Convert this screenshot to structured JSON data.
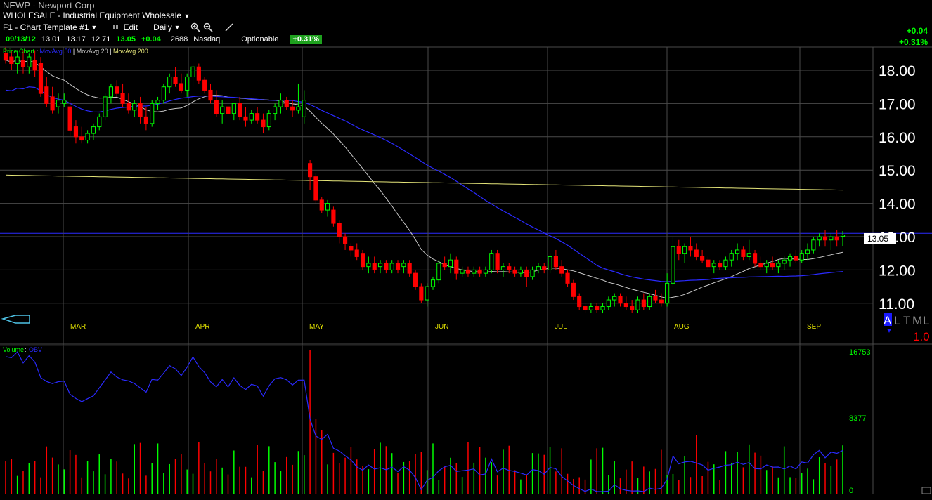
{
  "header": {
    "symbol_line": "NEWP - Newport Corp",
    "industry": "WHOLESALE - Industrial Equipment Wholesale",
    "template": "F1 - Chart Template #1",
    "edit_label": "Edit",
    "period_label": "Daily"
  },
  "quote": {
    "date": "09/13/12",
    "open": "13.01",
    "high": "13.17",
    "low": "12.71",
    "close": "13.05",
    "change": "+0.04",
    "volume": "2688",
    "exchange": "Nasdaq",
    "optionable": "Optionable",
    "pct_change": "+0.31%"
  },
  "right_panel": {
    "change": "+0.04",
    "pct_change": "+0.31%"
  },
  "legend": {
    "price_label": "Price Chart",
    "ma50": "MovAvg 50",
    "ma20": "MovAvg 20",
    "ma200": "MovAvg 200"
  },
  "volume_panel": {
    "label": "Volume",
    "obv_label": "OBV",
    "ticks": [
      "16753",
      "8377",
      "0"
    ]
  },
  "price_tag": "13.05",
  "corner_labels": {
    "a": "A",
    "l": "L",
    "t": "T",
    "m": "M",
    "l2": "L",
    "scale": "1.0"
  },
  "colors": {
    "up": "#00ff00",
    "down": "#ff0000",
    "ma20": "#c8c8c8",
    "ma50": "#2a2aff",
    "ma200": "#e6e67a",
    "grid": "#4a4a4a",
    "month": "#e6e600",
    "obv": "#2a2aff"
  },
  "chart_data": {
    "type": "candlestick",
    "y_axis": {
      "ticks": [
        "18.00",
        "17.00",
        "16.00",
        "15.00",
        "14.00",
        "13.00",
        "12.00",
        "11.00"
      ],
      "range": [
        10.6,
        18.6
      ]
    },
    "months": [
      "MAR",
      "APR",
      "MAY",
      "JUN",
      "JUL",
      "AUG",
      "SEP"
    ],
    "horizontal_line": 13.1,
    "candles": [
      [
        18.5,
        18.7,
        18.2,
        18.3
      ],
      [
        18.4,
        18.6,
        18.0,
        18.2
      ],
      [
        18.2,
        18.6,
        17.9,
        18.4
      ],
      [
        18.3,
        18.6,
        17.9,
        18.1
      ],
      [
        18.1,
        18.5,
        17.9,
        18.4
      ],
      [
        18.3,
        18.6,
        17.8,
        18.0
      ],
      [
        18.2,
        18.4,
        17.2,
        17.3
      ],
      [
        17.5,
        17.8,
        16.9,
        17.0
      ],
      [
        17.2,
        17.5,
        16.7,
        16.8
      ],
      [
        16.9,
        17.3,
        16.7,
        17.1
      ],
      [
        17.0,
        17.3,
        16.9,
        17.1
      ],
      [
        16.9,
        17.1,
        16.0,
        16.2
      ],
      [
        16.3,
        16.5,
        15.8,
        16.0
      ],
      [
        16.0,
        16.3,
        15.8,
        15.9
      ],
      [
        15.9,
        16.2,
        15.8,
        16.1
      ],
      [
        16.1,
        16.4,
        15.9,
        16.3
      ],
      [
        16.3,
        16.7,
        16.2,
        16.6
      ],
      [
        16.6,
        17.3,
        16.5,
        17.2
      ],
      [
        17.2,
        17.6,
        17.0,
        17.5
      ],
      [
        17.5,
        17.7,
        17.2,
        17.3
      ],
      [
        17.3,
        17.6,
        16.9,
        17.0
      ],
      [
        17.0,
        17.3,
        16.7,
        16.8
      ],
      [
        16.8,
        17.1,
        16.6,
        17.0
      ],
      [
        17.0,
        17.2,
        16.4,
        16.6
      ],
      [
        16.6,
        16.9,
        16.2,
        16.4
      ],
      [
        16.4,
        17.1,
        16.3,
        17.0
      ],
      [
        17.0,
        17.2,
        16.8,
        17.1
      ],
      [
        17.1,
        17.6,
        17.0,
        17.5
      ],
      [
        17.5,
        17.9,
        17.3,
        17.8
      ],
      [
        17.8,
        18.1,
        17.5,
        17.6
      ],
      [
        17.6,
        17.9,
        17.3,
        17.4
      ],
      [
        17.4,
        17.9,
        17.2,
        17.8
      ],
      [
        17.8,
        18.2,
        17.5,
        18.1
      ],
      [
        18.1,
        18.2,
        17.6,
        17.7
      ],
      [
        17.7,
        17.8,
        17.3,
        17.4
      ],
      [
        17.4,
        17.6,
        17.0,
        17.1
      ],
      [
        17.1,
        17.4,
        16.6,
        16.7
      ],
      [
        16.7,
        17.1,
        16.4,
        16.9
      ],
      [
        16.9,
        17.2,
        16.6,
        16.7
      ],
      [
        16.7,
        17.0,
        16.5,
        17.0
      ],
      [
        17.0,
        17.2,
        16.5,
        16.6
      ],
      [
        16.6,
        16.9,
        16.3,
        16.5
      ],
      [
        16.5,
        16.8,
        16.4,
        16.7
      ],
      [
        16.7,
        16.9,
        16.4,
        16.5
      ],
      [
        16.5,
        16.7,
        16.1,
        16.3
      ],
      [
        16.3,
        16.8,
        16.2,
        16.7
      ],
      [
        16.7,
        17.0,
        16.5,
        16.9
      ],
      [
        16.9,
        17.3,
        16.7,
        17.1
      ],
      [
        17.1,
        17.2,
        16.8,
        16.9
      ],
      [
        16.9,
        17.1,
        16.6,
        16.8
      ],
      [
        16.8,
        17.6,
        16.7,
        16.9
      ],
      [
        16.6,
        17.4,
        16.4,
        17.1
      ],
      [
        15.2,
        15.3,
        14.4,
        14.8
      ],
      [
        14.8,
        14.9,
        14.0,
        14.1
      ],
      [
        14.1,
        14.2,
        13.7,
        13.8
      ],
      [
        13.8,
        14.1,
        13.6,
        14.0
      ],
      [
        13.8,
        13.9,
        13.3,
        13.4
      ],
      [
        13.4,
        13.5,
        12.8,
        13.0
      ],
      [
        13.0,
        13.1,
        12.6,
        12.8
      ],
      [
        12.7,
        12.8,
        12.4,
        12.6
      ],
      [
        12.6,
        12.8,
        12.3,
        12.4
      ],
      [
        12.5,
        12.6,
        12.0,
        12.1
      ],
      [
        12.1,
        12.4,
        11.9,
        12.2
      ],
      [
        12.2,
        12.4,
        11.9,
        12.0
      ],
      [
        12.1,
        12.3,
        11.9,
        12.2
      ],
      [
        12.2,
        12.3,
        11.9,
        12.0
      ],
      [
        12.0,
        12.3,
        11.9,
        12.2
      ],
      [
        12.2,
        12.3,
        11.9,
        12.0
      ],
      [
        12.1,
        12.3,
        11.9,
        12.2
      ],
      [
        12.2,
        12.3,
        11.8,
        11.9
      ],
      [
        11.9,
        12.0,
        11.4,
        11.5
      ],
      [
        11.5,
        11.6,
        11.0,
        11.1
      ],
      [
        11.1,
        11.6,
        10.9,
        11.5
      ],
      [
        11.5,
        11.8,
        11.4,
        11.7
      ],
      [
        11.7,
        12.3,
        11.6,
        12.2
      ],
      [
        12.2,
        12.4,
        12.0,
        12.1
      ],
      [
        12.1,
        12.5,
        11.9,
        12.3
      ],
      [
        12.3,
        12.4,
        11.7,
        11.9
      ],
      [
        11.9,
        12.1,
        11.8,
        12.0
      ],
      [
        12.0,
        12.1,
        11.8,
        11.9
      ],
      [
        11.9,
        12.1,
        11.8,
        12.0
      ],
      [
        12.0,
        12.1,
        11.8,
        11.9
      ],
      [
        11.9,
        12.1,
        11.8,
        12.0
      ],
      [
        12.0,
        12.6,
        11.9,
        12.5
      ],
      [
        12.5,
        12.6,
        11.9,
        12.0
      ],
      [
        12.0,
        12.2,
        11.8,
        12.1
      ],
      [
        12.1,
        12.2,
        11.9,
        12.0
      ],
      [
        12.0,
        12.1,
        11.8,
        11.9
      ],
      [
        11.9,
        12.1,
        11.8,
        12.0
      ],
      [
        12.0,
        12.1,
        11.5,
        11.8
      ],
      [
        11.8,
        12.1,
        11.7,
        12.0
      ],
      [
        12.0,
        12.2,
        11.9,
        12.1
      ],
      [
        12.1,
        12.2,
        11.9,
        12.0
      ],
      [
        12.0,
        12.5,
        11.9,
        12.4
      ],
      [
        12.4,
        12.6,
        12.0,
        12.1
      ],
      [
        12.1,
        12.3,
        11.8,
        11.9
      ],
      [
        11.9,
        12.0,
        11.5,
        11.6
      ],
      [
        11.6,
        11.7,
        11.1,
        11.2
      ],
      [
        11.2,
        11.3,
        10.8,
        10.9
      ],
      [
        10.9,
        11.0,
        10.7,
        10.8
      ],
      [
        10.8,
        11.0,
        10.7,
        10.9
      ],
      [
        10.9,
        11.0,
        10.7,
        10.8
      ],
      [
        10.8,
        11.0,
        10.7,
        10.9
      ],
      [
        10.9,
        11.2,
        10.8,
        11.1
      ],
      [
        11.1,
        11.3,
        10.9,
        11.2
      ],
      [
        11.2,
        11.3,
        10.9,
        11.0
      ],
      [
        11.0,
        11.2,
        10.8,
        10.9
      ],
      [
        10.9,
        11.1,
        10.7,
        10.8
      ],
      [
        10.8,
        11.2,
        10.7,
        11.1
      ],
      [
        11.1,
        11.3,
        10.8,
        10.9
      ],
      [
        10.9,
        11.3,
        10.8,
        11.2
      ],
      [
        11.2,
        11.4,
        11.0,
        11.1
      ],
      [
        11.1,
        11.3,
        10.9,
        11.0
      ],
      [
        11.0,
        11.9,
        10.9,
        11.6
      ],
      [
        11.6,
        13.0,
        11.5,
        12.7
      ],
      [
        12.7,
        12.9,
        12.3,
        12.5
      ],
      [
        12.5,
        12.8,
        12.2,
        12.7
      ],
      [
        12.7,
        13.0,
        12.4,
        12.6
      ],
      [
        12.6,
        12.8,
        12.3,
        12.4
      ],
      [
        12.4,
        12.6,
        12.2,
        12.3
      ],
      [
        12.3,
        12.4,
        12.0,
        12.1
      ],
      [
        12.1,
        12.3,
        11.9,
        12.2
      ],
      [
        12.2,
        12.3,
        12.0,
        12.1
      ],
      [
        12.1,
        12.4,
        12.0,
        12.3
      ],
      [
        12.3,
        12.6,
        12.1,
        12.5
      ],
      [
        12.5,
        12.8,
        12.3,
        12.6
      ],
      [
        12.6,
        12.7,
        12.3,
        12.4
      ],
      [
        12.4,
        12.9,
        12.3,
        12.5
      ],
      [
        12.5,
        12.6,
        12.1,
        12.2
      ],
      [
        12.2,
        12.4,
        12.0,
        12.1
      ],
      [
        12.1,
        12.3,
        11.9,
        12.2
      ],
      [
        12.2,
        12.4,
        12.0,
        12.1
      ],
      [
        12.1,
        12.3,
        11.9,
        12.2
      ],
      [
        12.2,
        12.4,
        12.0,
        12.3
      ],
      [
        12.3,
        12.5,
        12.1,
        12.4
      ],
      [
        12.4,
        12.6,
        12.2,
        12.3
      ],
      [
        12.3,
        12.6,
        12.2,
        12.5
      ],
      [
        12.5,
        12.8,
        12.3,
        12.6
      ],
      [
        12.6,
        13.0,
        12.5,
        12.9
      ],
      [
        12.9,
        13.1,
        12.7,
        13.0
      ],
      [
        13.0,
        13.2,
        12.7,
        12.9
      ],
      [
        12.9,
        13.1,
        12.6,
        13.0
      ],
      [
        13.0,
        13.2,
        12.7,
        12.9
      ],
      [
        13.01,
        13.17,
        12.71,
        13.05
      ]
    ]
  }
}
